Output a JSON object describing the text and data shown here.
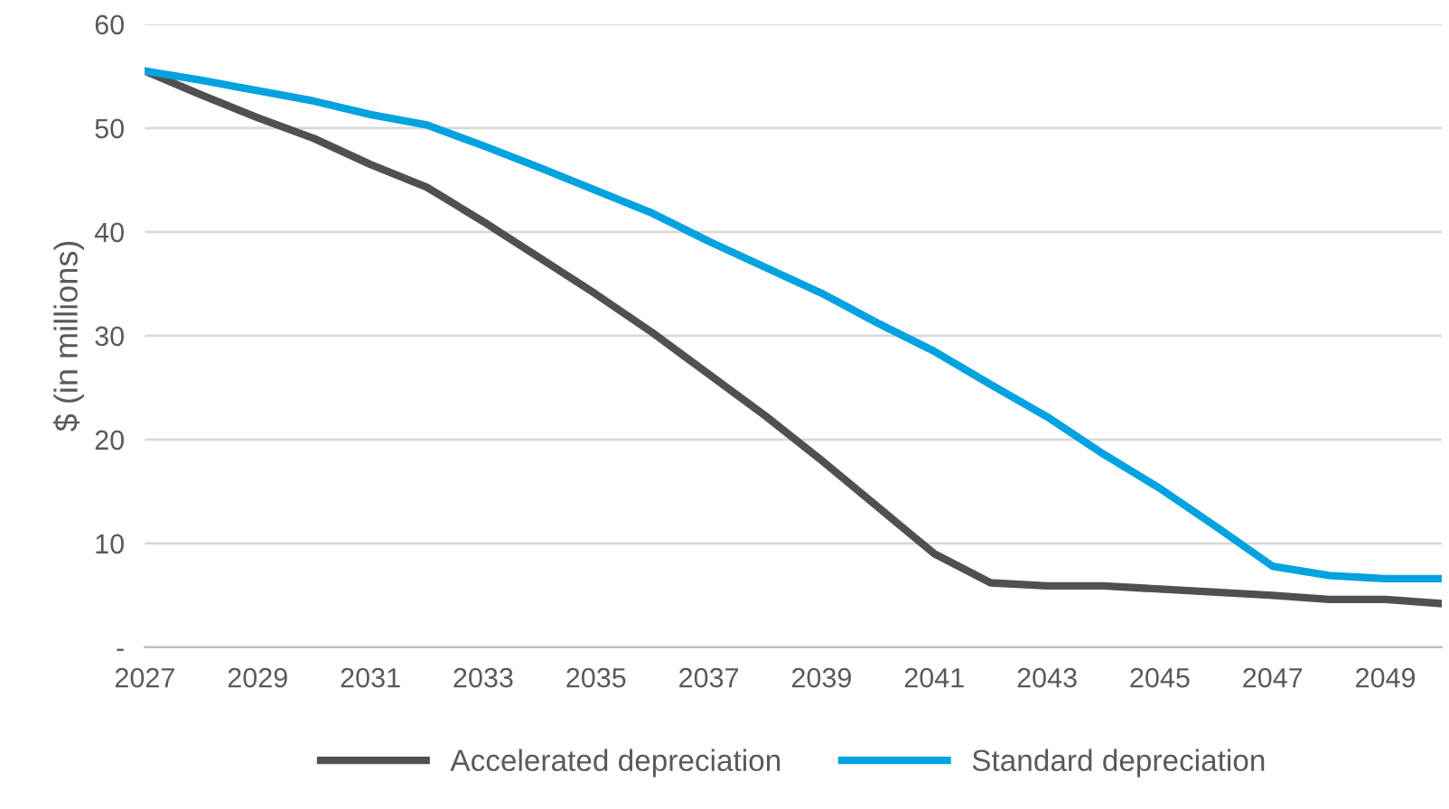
{
  "chart_data": {
    "type": "line",
    "ylabel": "$ (in millions)",
    "x": [
      2027,
      2028,
      2029,
      2030,
      2031,
      2032,
      2033,
      2034,
      2035,
      2036,
      2037,
      2038,
      2039,
      2040,
      2041,
      2042,
      2043,
      2044,
      2045,
      2046,
      2047,
      2048,
      2049,
      2050
    ],
    "series": [
      {
        "name": "Accelerated depreciation",
        "color": "#505050",
        "values": [
          55.5,
          53.2,
          51,
          49,
          46.5,
          44.3,
          41,
          37.5,
          34,
          30.3,
          26.3,
          22.3,
          18,
          13.5,
          9,
          6.2,
          5.9,
          5.9,
          5.6,
          5.3,
          5,
          4.6,
          4.6,
          4.2
        ]
      },
      {
        "name": "Standard depreciation",
        "color": "#00a2e0",
        "values": [
          55.5,
          54.6,
          53.6,
          52.6,
          51.3,
          50.3,
          48.3,
          46.2,
          44,
          41.8,
          39.1,
          36.6,
          34.1,
          31.2,
          28.5,
          25.3,
          22.2,
          18.6,
          15.3,
          11.6,
          7.8,
          6.9,
          6.6,
          6.6
        ]
      }
    ],
    "xlim": [
      2027,
      2050
    ],
    "xticks": [
      2027,
      2029,
      2031,
      2033,
      2035,
      2037,
      2039,
      2041,
      2043,
      2045,
      2047,
      2049
    ],
    "ylim": [
      0,
      60
    ],
    "yticks": [
      {
        "value": 0,
        "label": "-"
      },
      10,
      20,
      30,
      40,
      50,
      60
    ],
    "grid": "y",
    "legend": "bottom",
    "marker": "none",
    "line_style": "solid"
  }
}
